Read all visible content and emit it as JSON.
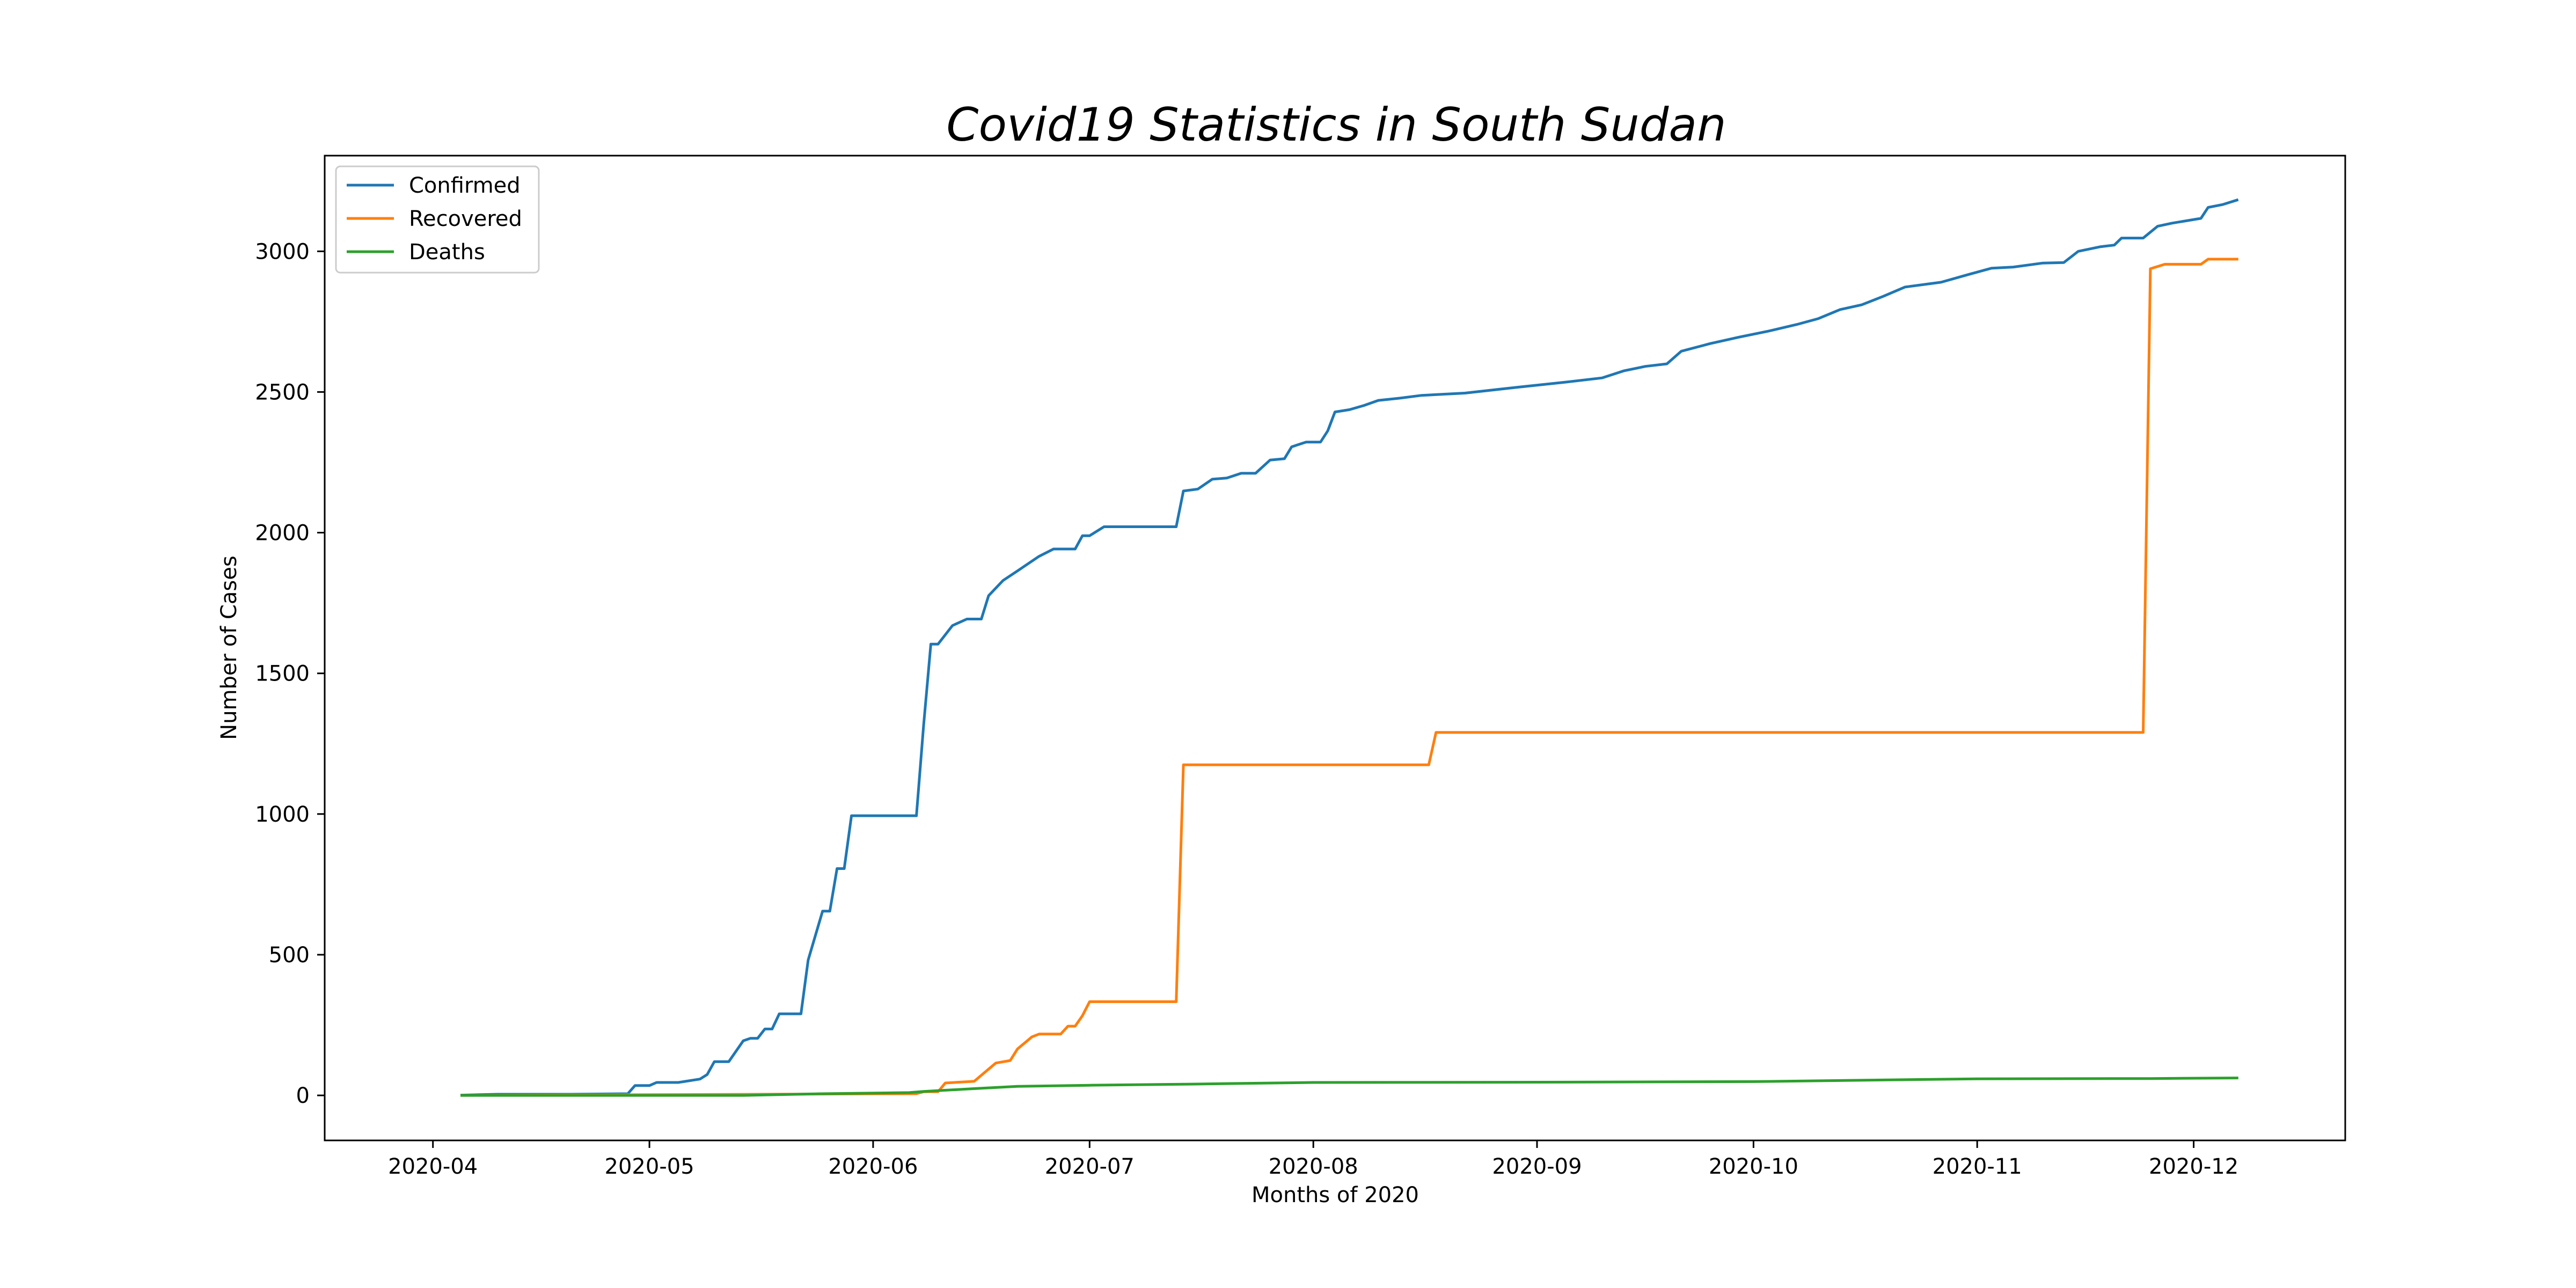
{
  "chart_data": {
    "type": "line",
    "title": "Covid19 Statistics in South Sudan",
    "xlabel": "Months of 2020",
    "ylabel": "Number of Cases",
    "x_ticks": [
      "2020-04",
      "2020-05",
      "2020-06",
      "2020-07",
      "2020-08",
      "2020-09",
      "2020-10",
      "2020-11",
      "2020-12"
    ],
    "y_ticks": [
      0,
      500,
      1000,
      1500,
      2000,
      2500,
      3000
    ],
    "xlim": [
      "2020-03-17",
      "2020-12-22"
    ],
    "ylim": [
      -160,
      3340
    ],
    "grid": false,
    "legend_position": "upper-left",
    "series": [
      {
        "name": "Confirmed",
        "color": "#1f77b4",
        "points": [
          [
            "2020-04-05",
            1
          ],
          [
            "2020-04-10",
            4
          ],
          [
            "2020-04-20",
            4
          ],
          [
            "2020-04-28",
            6
          ],
          [
            "2020-04-29",
            35
          ],
          [
            "2020-05-01",
            35
          ],
          [
            "2020-05-02",
            46
          ],
          [
            "2020-05-05",
            46
          ],
          [
            "2020-05-08",
            58
          ],
          [
            "2020-05-09",
            74
          ],
          [
            "2020-05-10",
            120
          ],
          [
            "2020-05-12",
            120
          ],
          [
            "2020-05-14",
            194
          ],
          [
            "2020-05-15",
            203
          ],
          [
            "2020-05-16",
            203
          ],
          [
            "2020-05-17",
            236
          ],
          [
            "2020-05-18",
            236
          ],
          [
            "2020-05-19",
            290
          ],
          [
            "2020-05-22",
            290
          ],
          [
            "2020-05-23",
            481
          ],
          [
            "2020-05-25",
            655
          ],
          [
            "2020-05-26",
            655
          ],
          [
            "2020-05-27",
            806
          ],
          [
            "2020-05-28",
            806
          ],
          [
            "2020-05-29",
            994
          ],
          [
            "2020-06-07",
            994
          ],
          [
            "2020-06-08",
            1317
          ],
          [
            "2020-06-09",
            1604
          ],
          [
            "2020-06-10",
            1604
          ],
          [
            "2020-06-12",
            1670
          ],
          [
            "2020-06-14",
            1693
          ],
          [
            "2020-06-16",
            1693
          ],
          [
            "2020-06-17",
            1776
          ],
          [
            "2020-06-19",
            1830
          ],
          [
            "2020-06-21",
            1864
          ],
          [
            "2020-06-24",
            1916
          ],
          [
            "2020-06-26",
            1942
          ],
          [
            "2020-06-29",
            1942
          ],
          [
            "2020-06-30",
            1989
          ],
          [
            "2020-07-01",
            1989
          ],
          [
            "2020-07-03",
            2021
          ],
          [
            "2020-07-13",
            2021
          ],
          [
            "2020-07-14",
            2148
          ],
          [
            "2020-07-16",
            2155
          ],
          [
            "2020-07-18",
            2190
          ],
          [
            "2020-07-20",
            2194
          ],
          [
            "2020-07-22",
            2211
          ],
          [
            "2020-07-24",
            2211
          ],
          [
            "2020-07-26",
            2258
          ],
          [
            "2020-07-28",
            2263
          ],
          [
            "2020-07-29",
            2305
          ],
          [
            "2020-07-31",
            2322
          ],
          [
            "2020-08-02",
            2322
          ],
          [
            "2020-08-03",
            2362
          ],
          [
            "2020-08-04",
            2429
          ],
          [
            "2020-08-06",
            2437
          ],
          [
            "2020-08-08",
            2452
          ],
          [
            "2020-08-10",
            2470
          ],
          [
            "2020-08-13",
            2478
          ],
          [
            "2020-08-16",
            2488
          ],
          [
            "2020-08-22",
            2496
          ],
          [
            "2020-08-29",
            2516
          ],
          [
            "2020-09-05",
            2535
          ],
          [
            "2020-09-10",
            2550
          ],
          [
            "2020-09-13",
            2575
          ],
          [
            "2020-09-16",
            2591
          ],
          [
            "2020-09-19",
            2600
          ],
          [
            "2020-09-21",
            2645
          ],
          [
            "2020-09-25",
            2672
          ],
          [
            "2020-09-29",
            2695
          ],
          [
            "2020-10-03",
            2716
          ],
          [
            "2020-10-07",
            2740
          ],
          [
            "2020-10-10",
            2761
          ],
          [
            "2020-10-13",
            2793
          ],
          [
            "2020-10-16",
            2810
          ],
          [
            "2020-10-19",
            2840
          ],
          [
            "2020-10-22",
            2873
          ],
          [
            "2020-10-27",
            2890
          ],
          [
            "2020-10-31",
            2919
          ],
          [
            "2020-11-03",
            2940
          ],
          [
            "2020-11-06",
            2944
          ],
          [
            "2020-11-10",
            2958
          ],
          [
            "2020-11-13",
            2960
          ],
          [
            "2020-11-15",
            3000
          ],
          [
            "2020-11-18",
            3016
          ],
          [
            "2020-11-20",
            3022
          ],
          [
            "2020-11-21",
            3047
          ],
          [
            "2020-11-24",
            3047
          ],
          [
            "2020-11-26",
            3089
          ],
          [
            "2020-11-28",
            3100
          ],
          [
            "2020-12-02",
            3117
          ],
          [
            "2020-12-03",
            3156
          ],
          [
            "2020-12-05",
            3166
          ],
          [
            "2020-12-07",
            3182
          ]
        ]
      },
      {
        "name": "Recovered",
        "color": "#ff7f0e",
        "points": [
          [
            "2020-04-05",
            0
          ],
          [
            "2020-06-06",
            6
          ],
          [
            "2020-06-07",
            6
          ],
          [
            "2020-06-08",
            13
          ],
          [
            "2020-06-10",
            13
          ],
          [
            "2020-06-11",
            44
          ],
          [
            "2020-06-15",
            50
          ],
          [
            "2020-06-18",
            115
          ],
          [
            "2020-06-20",
            124
          ],
          [
            "2020-06-21",
            165
          ],
          [
            "2020-06-23",
            208
          ],
          [
            "2020-06-24",
            218
          ],
          [
            "2020-06-27",
            218
          ],
          [
            "2020-06-28",
            246
          ],
          [
            "2020-06-29",
            246
          ],
          [
            "2020-06-30",
            283
          ],
          [
            "2020-07-01",
            333
          ],
          [
            "2020-07-13",
            333
          ],
          [
            "2020-07-14",
            1175
          ],
          [
            "2020-08-17",
            1175
          ],
          [
            "2020-08-18",
            1290
          ],
          [
            "2020-11-24",
            1290
          ],
          [
            "2020-11-25",
            2938
          ],
          [
            "2020-11-27",
            2954
          ],
          [
            "2020-12-02",
            2954
          ],
          [
            "2020-12-03",
            2972
          ],
          [
            "2020-12-07",
            2972
          ]
        ]
      },
      {
        "name": "Deaths",
        "color": "#2ca02c",
        "points": [
          [
            "2020-04-05",
            0
          ],
          [
            "2020-05-14",
            0
          ],
          [
            "2020-05-25",
            6
          ],
          [
            "2020-06-06",
            10
          ],
          [
            "2020-06-08",
            14
          ],
          [
            "2020-06-15",
            24
          ],
          [
            "2020-06-21",
            32
          ],
          [
            "2020-07-01",
            36
          ],
          [
            "2020-07-15",
            40
          ],
          [
            "2020-08-01",
            46
          ],
          [
            "2020-09-01",
            47
          ],
          [
            "2020-10-01",
            49
          ],
          [
            "2020-11-01",
            59
          ],
          [
            "2020-11-25",
            60
          ],
          [
            "2020-12-07",
            62
          ]
        ]
      }
    ]
  }
}
